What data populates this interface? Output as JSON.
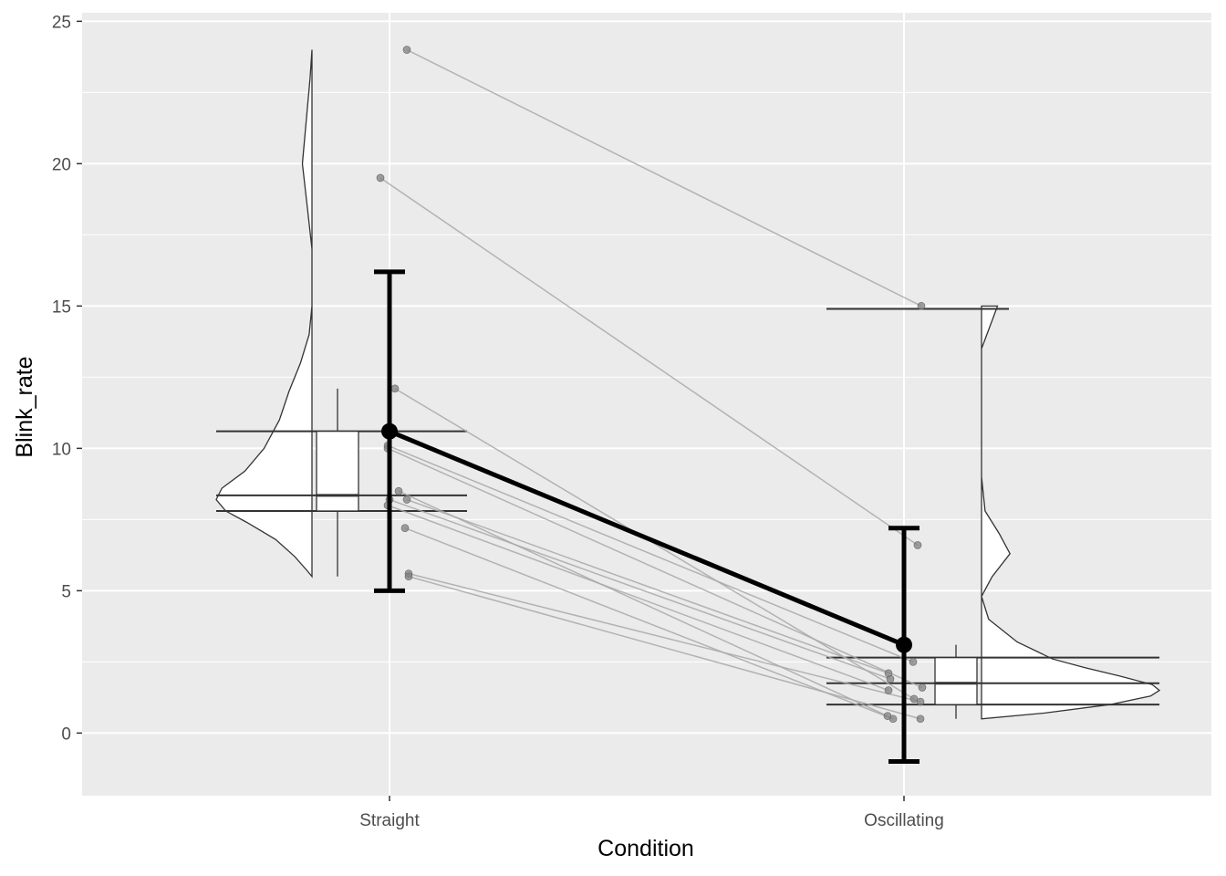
{
  "chart_data": {
    "type": "raincloud",
    "xlabel": "Condition",
    "ylabel": "Blink_rate",
    "categories": [
      "Straight",
      "Oscillating"
    ],
    "ylim": [
      -2.2,
      25.3
    ],
    "yticks": [
      0,
      5,
      10,
      15,
      20,
      25
    ],
    "grid": true,
    "colors": {
      "panel": "#ebebeb",
      "grid": "#ffffff",
      "points": "#808080",
      "paired_lines": "#a8a8a8",
      "summary": "#000000",
      "outline": "#333333"
    },
    "paired_points": [
      {
        "Straight": 24.0,
        "Oscillating": 15.0
      },
      {
        "Straight": 19.5,
        "Oscillating": 6.6
      },
      {
        "Straight": 12.1,
        "Oscillating": 1.2
      },
      {
        "Straight": 10.1,
        "Oscillating": 2.5
      },
      {
        "Straight": 10.0,
        "Oscillating": 1.6
      },
      {
        "Straight": 8.5,
        "Oscillating": 0.6
      },
      {
        "Straight": 8.2,
        "Oscillating": 1.9
      },
      {
        "Straight": 8.2,
        "Oscillating": 2.1
      },
      {
        "Straight": 8.0,
        "Oscillating": 1.5
      },
      {
        "Straight": 7.2,
        "Oscillating": 0.5
      },
      {
        "Straight": 5.6,
        "Oscillating": 1.1
      },
      {
        "Straight": 5.5,
        "Oscillating": 0.5
      }
    ],
    "summary": [
      {
        "category": "Straight",
        "mean": 10.6,
        "lower": 5.0,
        "upper": 16.2
      },
      {
        "category": "Oscillating",
        "mean": 3.1,
        "lower": -1.0,
        "upper": 7.2
      }
    ],
    "boxplots": [
      {
        "category": "Straight",
        "min": 5.5,
        "q1": 7.8,
        "median": 8.35,
        "q3": 10.6,
        "max": 12.1
      },
      {
        "category": "Oscillating",
        "min": 0.5,
        "q1": 1.0,
        "median": 1.75,
        "q3": 2.65,
        "max": 3.1
      }
    ],
    "density": [
      {
        "category": "Straight",
        "side": "left",
        "profile": [
          [
            5.5,
            0.0
          ],
          [
            5.7,
            0.05
          ],
          [
            6.2,
            0.18
          ],
          [
            6.8,
            0.38
          ],
          [
            7.4,
            0.68
          ],
          [
            7.8,
            0.9
          ],
          [
            8.2,
            1.0
          ],
          [
            8.6,
            0.94
          ],
          [
            9.2,
            0.7
          ],
          [
            10.0,
            0.5
          ],
          [
            11.0,
            0.34
          ],
          [
            12.0,
            0.24
          ],
          [
            13.0,
            0.12
          ],
          [
            14.0,
            0.03
          ],
          [
            15.0,
            0.0
          ],
          [
            17.0,
            0.0
          ],
          [
            18.5,
            0.05
          ],
          [
            20.0,
            0.1
          ],
          [
            21.5,
            0.06
          ],
          [
            23.0,
            0.02
          ],
          [
            24.0,
            0.0
          ]
        ]
      },
      {
        "category": "Oscillating",
        "side": "right",
        "profile": [
          [
            0.5,
            0.0
          ],
          [
            0.7,
            0.35
          ],
          [
            1.0,
            0.72
          ],
          [
            1.3,
            0.95
          ],
          [
            1.5,
            1.0
          ],
          [
            1.7,
            0.96
          ],
          [
            2.0,
            0.78
          ],
          [
            2.3,
            0.58
          ],
          [
            2.6,
            0.4
          ],
          [
            3.2,
            0.2
          ],
          [
            4.0,
            0.04
          ],
          [
            4.8,
            0.0
          ],
          [
            5.5,
            0.06
          ],
          [
            6.3,
            0.16
          ],
          [
            7.0,
            0.1
          ],
          [
            7.8,
            0.02
          ],
          [
            9.0,
            0.0
          ],
          [
            12.0,
            0.0
          ],
          [
            13.5,
            0.0
          ],
          [
            14.5,
            0.06
          ],
          [
            15.0,
            0.09
          ]
        ]
      }
    ],
    "extra_lines": [
      {
        "category": "Straight",
        "y": 10.6
      },
      {
        "category": "Straight",
        "y": 8.35
      },
      {
        "category": "Straight",
        "y": 7.8
      },
      {
        "category": "Oscillating",
        "y": 2.65
      },
      {
        "category": "Oscillating",
        "y": 1.75
      },
      {
        "category": "Oscillating",
        "y": 1.0
      },
      {
        "category": "Oscillating",
        "y": 14.9
      }
    ]
  }
}
